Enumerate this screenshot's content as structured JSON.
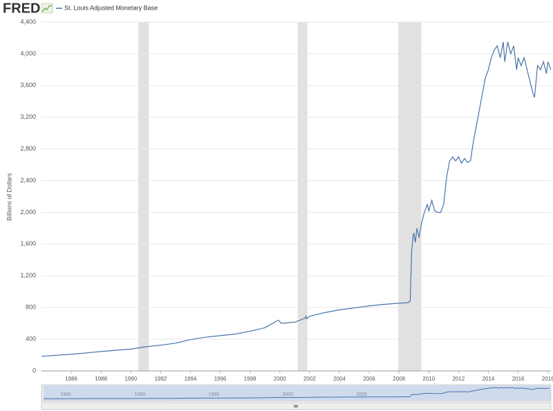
{
  "brand": "FRED",
  "chart_data": {
    "type": "line",
    "y_label": "Billions of Dollars",
    "xlim": [
      1984,
      2018.2
    ],
    "xticks": [
      1986,
      1988,
      1990,
      1992,
      1994,
      1996,
      1998,
      2000,
      2002,
      2004,
      2006,
      2008,
      2010,
      2012,
      2014,
      2016,
      2018
    ],
    "ylim": [
      0,
      4400
    ],
    "yticks": [
      0,
      400,
      800,
      {
        "value": 1200,
        "label": "1,200"
      },
      {
        "value": 1600,
        "label": "1,600"
      },
      {
        "value": 2000,
        "label": "2,000"
      },
      {
        "value": 2400,
        "label": "2,400"
      },
      {
        "value": 2800,
        "label": "2,800"
      },
      {
        "value": 3200,
        "label": "3,200"
      },
      {
        "value": 3600,
        "label": "3,600"
      },
      {
        "value": 4000,
        "label": "4,000"
      },
      {
        "value": 4400,
        "label": "4,400"
      }
    ],
    "grid": true,
    "recession_color": "#e1e1e1",
    "recessions": [
      [
        1990.5,
        1991.2
      ],
      [
        2001.2,
        2001.85
      ],
      [
        2007.95,
        2009.5
      ]
    ],
    "series": [
      {
        "name": "St. Louis Adjusted Monetary Base",
        "color": "#4572a7",
        "x": [
          1984.0,
          1986.0,
          1988.0,
          1990.0,
          1991.0,
          1992.0,
          1993.0,
          1994.0,
          1995.0,
          1996.0,
          1997.0,
          1998.0,
          1999.0,
          1999.9,
          2000.1,
          2001.0,
          2001.7,
          2001.75,
          2001.8,
          2002.0,
          2003.0,
          2004.0,
          2005.0,
          2006.0,
          2007.0,
          2008.0,
          2008.6,
          2008.75,
          2008.85,
          2008.95,
          2009.0,
          2009.1,
          2009.2,
          2009.35,
          2009.5,
          2009.7,
          2009.9,
          2010.0,
          2010.2,
          2010.4,
          2010.6,
          2010.8,
          2011.0,
          2011.2,
          2011.4,
          2011.6,
          2011.8,
          2012.0,
          2012.2,
          2012.4,
          2012.6,
          2012.8,
          2013.0,
          2013.2,
          2013.4,
          2013.6,
          2013.8,
          2014.0,
          2014.2,
          2014.4,
          2014.6,
          2014.8,
          2015.0,
          2015.1,
          2015.3,
          2015.5,
          2015.7,
          2015.9,
          2016.0,
          2016.2,
          2016.4,
          2016.6,
          2016.8,
          2017.0,
          2017.1,
          2017.3,
          2017.5,
          2017.7,
          2017.9,
          2018.0,
          2018.2
        ],
        "values": [
          185,
          210,
          245,
          275,
          305,
          325,
          350,
          395,
          425,
          445,
          465,
          500,
          545,
          640,
          600,
          615,
          665,
          690,
          660,
          690,
          735,
          770,
          795,
          820,
          840,
          855,
          860,
          880,
          1500,
          1700,
          1740,
          1620,
          1800,
          1680,
          1850,
          2000,
          2100,
          2020,
          2150,
          2020,
          2000,
          2000,
          2100,
          2450,
          2650,
          2700,
          2650,
          2700,
          2620,
          2680,
          2630,
          2650,
          2900,
          3100,
          3300,
          3500,
          3700,
          3800,
          3950,
          4050,
          4100,
          3950,
          4150,
          3900,
          4150,
          4000,
          4100,
          3800,
          3950,
          3850,
          3950,
          3800,
          3650,
          3500,
          3450,
          3850,
          3800,
          3900,
          3750,
          3900,
          3800
        ]
      }
    ]
  },
  "navigator": {
    "xlim": [
      1984,
      2018.3
    ],
    "xticks": [
      1985,
      1990,
      1995,
      2000,
      2005
    ]
  }
}
